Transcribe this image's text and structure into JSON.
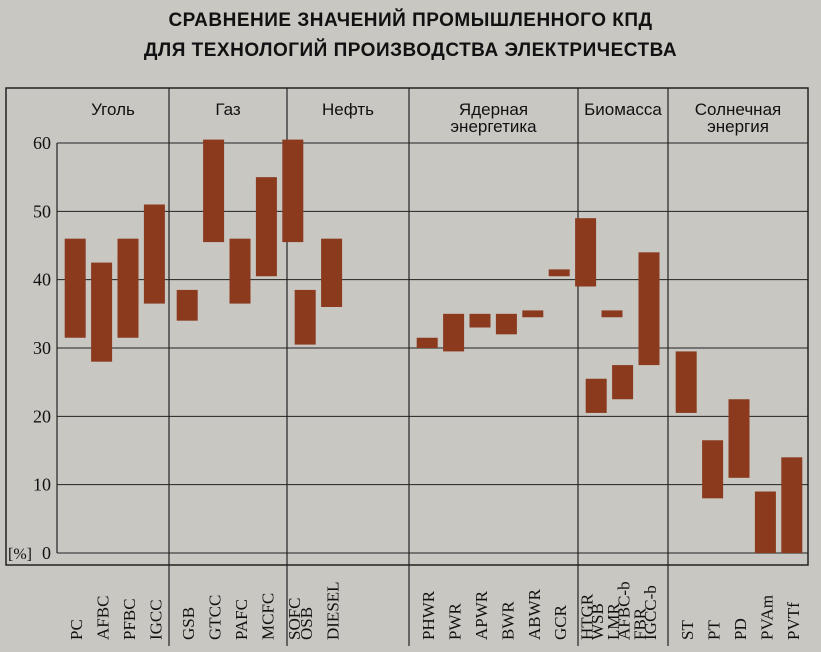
{
  "chart_data": {
    "type": "bar",
    "title": "СРАВНЕНИЕ ЗНАЧЕНИЙ ПРОМЫШЛЕННОГО КПД",
    "subtitle": "ДЛЯ ТЕХНОЛОГИЙ ПРОИЗВОДСТВА ЭЛЕКТРИЧЕСТВА",
    "ylabel": "[%]",
    "ylim": [
      0,
      60
    ],
    "yticks": [
      0,
      10,
      20,
      30,
      40,
      50,
      60
    ],
    "grid": true,
    "bar_color": "#8b3a1e",
    "groups": [
      {
        "lines": [
          "Уголь"
        ],
        "items": [
          {
            "label": "PC",
            "low": 31.5,
            "high": 46
          },
          {
            "label": "AFBC",
            "low": 28,
            "high": 42.5
          },
          {
            "label": "PFBC",
            "low": 31.5,
            "high": 46
          },
          {
            "label": "IGCC",
            "low": 36.5,
            "high": 51
          }
        ]
      },
      {
        "lines": [
          "Газ"
        ],
        "items": [
          {
            "label": "GSB",
            "low": 34,
            "high": 38.5
          },
          {
            "label": "GTCC",
            "low": 45.5,
            "high": 60.5
          },
          {
            "label": "PAFC",
            "low": 36.5,
            "high": 46
          },
          {
            "label": "MCFC",
            "low": 40.5,
            "high": 55
          },
          {
            "label": "SOFC",
            "low": 45.5,
            "high": 60.5
          }
        ]
      },
      {
        "lines": [
          "Нефть"
        ],
        "items": [
          {
            "label": "OSB",
            "low": 30.5,
            "high": 38.5
          },
          {
            "label": "DIESEL",
            "low": 36,
            "high": 46
          }
        ]
      },
      {
        "lines": [
          "Ядерная",
          "энергетика"
        ],
        "items": [
          {
            "label": "PHWR",
            "low": 30,
            "high": 31.5
          },
          {
            "label": "PWR",
            "low": 29.5,
            "high": 35
          },
          {
            "label": "APWR",
            "low": 33,
            "high": 35
          },
          {
            "label": "BWR",
            "low": 32,
            "high": 35
          },
          {
            "label": "ABWR",
            "low": 34.5,
            "high": 35.5
          },
          {
            "label": "GCR",
            "low": 40.5,
            "high": 41.5
          },
          {
            "label": "HTGR",
            "low": 39,
            "high": 49
          },
          {
            "label": "LMR",
            "low": 34.5,
            "high": 35.5
          },
          {
            "label": "FBR",
            "low": null,
            "high": null
          }
        ]
      },
      {
        "lines": [
          "Биомасса"
        ],
        "items": [
          {
            "label": "WSB",
            "low": 20.5,
            "high": 25.5
          },
          {
            "label": "AFBC-b",
            "low": 22.5,
            "high": 27.5
          },
          {
            "label": "IGCC-b",
            "low": 27.5,
            "high": 44
          }
        ]
      },
      {
        "lines": [
          "Солнечная",
          "энергия"
        ],
        "items": [
          {
            "label": "ST",
            "low": 20.5,
            "high": 29.5
          },
          {
            "label": "PT",
            "low": 8,
            "high": 16.5
          },
          {
            "label": "PD",
            "low": 11,
            "high": 22.5
          },
          {
            "label": "PVAm",
            "low": 0,
            "high": 9
          },
          {
            "label": "PVTf",
            "low": 0,
            "high": 14
          }
        ]
      }
    ]
  }
}
